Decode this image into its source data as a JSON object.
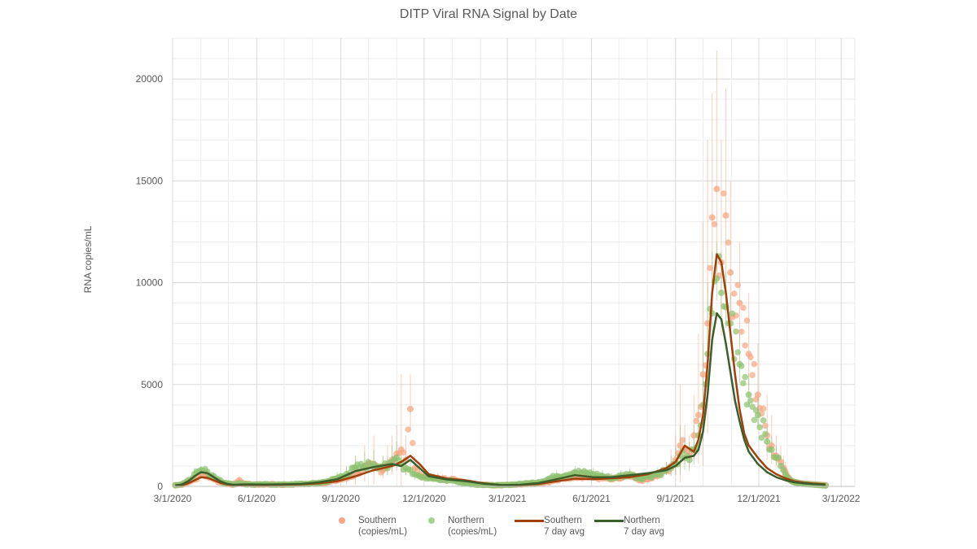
{
  "chart_data": {
    "type": "scatter",
    "title": "DITP Viral RNA Signal by Date",
    "xlabel": "",
    "ylabel": "RNA copies/mL",
    "ylim": [
      0,
      22000
    ],
    "yticks": [
      0,
      5000,
      10000,
      15000,
      20000
    ],
    "xticks": [
      "3/1/2020",
      "6/1/2020",
      "9/1/2020",
      "12/1/2020",
      "3/1/2021",
      "6/1/2021",
      "9/1/2021",
      "12/1/2021",
      "3/1/2022"
    ],
    "xlim": [
      "3/1/2020",
      "3/1/2022"
    ],
    "grid": true,
    "legend_position": "bottom",
    "colors": {
      "southern_points": "#F4A582",
      "northern_points": "#8DC26F",
      "southern_avg": "#A0410D",
      "northern_avg": "#3B5E2B",
      "grid_major": "#D9D9D9",
      "grid_minor": "#EDEDED",
      "text": "#595959"
    },
    "legend": [
      {
        "label_line1": "Southern",
        "label_line2": "(copies/mL)",
        "kind": "dot",
        "color": "#F4A582"
      },
      {
        "label_line1": "Northern",
        "label_line2": "(copies/mL)",
        "kind": "dot",
        "color": "#8DC26F"
      },
      {
        "label_line1": "Southern",
        "label_line2": "7 day avg",
        "kind": "line",
        "color": "#A0410D"
      },
      {
        "label_line1": "Northern",
        "label_line2": "7 day avg",
        "kind": "line",
        "color": "#3B5E2B"
      }
    ],
    "x_unit": "days since 3/1/2020",
    "series": [
      {
        "name": "Southern (copies/mL)",
        "kind": "scatter",
        "x": [
          3,
          10,
          17,
          24,
          31,
          38,
          45,
          52,
          59,
          66,
          73,
          80,
          90,
          100,
          110,
          120,
          130,
          140,
          150,
          160,
          170,
          180,
          190,
          200,
          210,
          220,
          230,
          235,
          240,
          245,
          250,
          255,
          260,
          265,
          270,
          275,
          280,
          285,
          290,
          295,
          300,
          305,
          310,
          315,
          320,
          330,
          340,
          350,
          360,
          370,
          380,
          400,
          420,
          440,
          460,
          470,
          480,
          490,
          500,
          510,
          520,
          530,
          540,
          545,
          550,
          555,
          560,
          565,
          570,
          575,
          580,
          585,
          590,
          595,
          600,
          605,
          610,
          620,
          630,
          640,
          650,
          655,
          660,
          665,
          668,
          670,
          672,
          674,
          676,
          678,
          680,
          682,
          684,
          686,
          688,
          690,
          693,
          696,
          699,
          702,
          705,
          708,
          711,
          714
        ],
        "y": [
          50,
          80,
          200,
          350,
          550,
          500,
          350,
          200,
          120,
          80,
          300,
          120,
          80,
          90,
          100,
          80,
          90,
          110,
          120,
          150,
          200,
          300,
          400,
          600,
          900,
          1000,
          800,
          1100,
          1300,
          1600,
          1800,
          1300,
          3800,
          900,
          600,
          500,
          450,
          400,
          420,
          380,
          300,
          350,
          300,
          250,
          200,
          120,
          80,
          60,
          60,
          80,
          100,
          150,
          300,
          500,
          450,
          400,
          350,
          400,
          500,
          300,
          350,
          500,
          800,
          1000,
          1300,
          2000,
          1800,
          1500,
          2500,
          3500,
          5500,
          8000,
          13200,
          14600,
          11000,
          13300,
          10500,
          9000,
          6500,
          4500,
          2500,
          2000,
          1500,
          1200,
          900,
          700,
          500,
          400,
          300,
          250,
          220,
          200,
          180,
          160,
          150,
          140,
          130,
          120,
          110,
          100,
          90,
          80,
          70,
          60
        ],
        "error_high": [
          80,
          150,
          400,
          700,
          900,
          800,
          500,
          300,
          200,
          150,
          500,
          200,
          120,
          150,
          150,
          120,
          140,
          180,
          200,
          250,
          350,
          600,
          900,
          1500,
          2000,
          2500,
          1500,
          2000,
          2500,
          3000,
          5500,
          2500,
          5500,
          1500,
          1000,
          800,
          700,
          600,
          650,
          600,
          500,
          550,
          450,
          400,
          300,
          200,
          150,
          100,
          100,
          150,
          200,
          300,
          600,
          800,
          700,
          700,
          600,
          700,
          800,
          500,
          600,
          800,
          1200,
          1800,
          2500,
          5000,
          3000,
          2500,
          4500,
          7500,
          13000,
          17000,
          19300,
          21400,
          17000,
          19500,
          15000,
          12000,
          9500,
          7000,
          4500,
          3500,
          2500,
          2000,
          1500,
          1200,
          900,
          700,
          500,
          400,
          350,
          300,
          280,
          250,
          230,
          210,
          200,
          180,
          160,
          150,
          140,
          120,
          110,
          100
        ]
      },
      {
        "name": "Northern (copies/mL)",
        "kind": "scatter",
        "x": [
          3,
          10,
          17,
          24,
          31,
          38,
          45,
          52,
          59,
          66,
          73,
          80,
          90,
          100,
          110,
          120,
          130,
          140,
          150,
          160,
          170,
          180,
          190,
          200,
          210,
          220,
          230,
          235,
          240,
          245,
          250,
          255,
          260,
          265,
          270,
          275,
          280,
          285,
          290,
          295,
          300,
          305,
          310,
          315,
          320,
          330,
          340,
          350,
          360,
          370,
          380,
          400,
          420,
          440,
          460,
          470,
          480,
          490,
          500,
          510,
          520,
          530,
          540,
          545,
          550,
          555,
          560,
          565,
          570,
          575,
          580,
          585,
          590,
          595,
          600,
          605,
          610,
          620,
          630,
          640,
          650,
          655,
          660,
          665,
          668,
          670,
          672,
          674,
          676,
          678,
          680,
          682,
          684,
          686,
          688,
          690,
          693,
          696,
          699,
          702,
          705,
          708,
          711,
          714
        ],
        "y": [
          60,
          100,
          300,
          600,
          800,
          700,
          500,
          300,
          150,
          100,
          150,
          100,
          90,
          100,
          90,
          90,
          100,
          120,
          130,
          180,
          250,
          400,
          600,
          900,
          1000,
          1100,
          1000,
          900,
          1200,
          1400,
          1100,
          900,
          800,
          600,
          500,
          450,
          400,
          380,
          350,
          320,
          280,
          300,
          250,
          200,
          150,
          100,
          70,
          60,
          60,
          80,
          120,
          200,
          500,
          700,
          600,
          500,
          400,
          500,
          600,
          400,
          500,
          600,
          800,
          900,
          1100,
          1500,
          1400,
          1300,
          1800,
          2500,
          4000,
          6500,
          8500,
          10200,
          9500,
          8800,
          8000,
          6000,
          4500,
          3500,
          2200,
          1800,
          1400,
          1000,
          800,
          600,
          450,
          350,
          280,
          230,
          200,
          180,
          160,
          140,
          130,
          120,
          110,
          100,
          90,
          80,
          70,
          60,
          50,
          40
        ],
        "error_high": [
          100,
          150,
          500,
          900,
          1000,
          900,
          700,
          400,
          250,
          150,
          250,
          150,
          130,
          150,
          130,
          130,
          150,
          180,
          200,
          280,
          400,
          700,
          1000,
          1500,
          1700,
          1800,
          1500,
          1500,
          2000,
          2200,
          1800,
          1500,
          1300,
          1000,
          800,
          700,
          650,
          600,
          550,
          500,
          450,
          450,
          400,
          300,
          250,
          150,
          120,
          100,
          100,
          150,
          200,
          350,
          800,
          1000,
          900,
          800,
          650,
          800,
          900,
          600,
          700,
          900,
          1200,
          1500,
          2000,
          3000,
          2400,
          2200,
          3000,
          4000,
          7000,
          10000,
          11500,
          12000,
          11500,
          10500,
          9500,
          7500,
          5500,
          4500,
          3000,
          2500,
          2000,
          1500,
          1200,
          900,
          700,
          550,
          450,
          350,
          300,
          280,
          250,
          220,
          200,
          180,
          160,
          150,
          140,
          120,
          110,
          100,
          80,
          70
        ]
      },
      {
        "name": "Southern 7 day avg",
        "kind": "line",
        "x": [
          3,
          10,
          17,
          24,
          31,
          38,
          45,
          52,
          59,
          66,
          80,
          100,
          120,
          140,
          160,
          180,
          200,
          220,
          240,
          250,
          260,
          270,
          280,
          300,
          320,
          340,
          360,
          380,
          400,
          420,
          440,
          460,
          480,
          500,
          520,
          540,
          550,
          560,
          570,
          575,
          580,
          585,
          590,
          595,
          600,
          605,
          610,
          615,
          620,
          625,
          630,
          640,
          650,
          660,
          670,
          680,
          690,
          700,
          714
        ],
        "y": [
          40,
          60,
          150,
          300,
          450,
          420,
          300,
          180,
          100,
          60,
          80,
          70,
          80,
          100,
          150,
          250,
          500,
          800,
          1000,
          1200,
          1500,
          1100,
          600,
          380,
          300,
          150,
          60,
          70,
          120,
          250,
          380,
          350,
          400,
          450,
          600,
          900,
          1200,
          2000,
          1700,
          2300,
          3500,
          6000,
          9500,
          11400,
          11000,
          9500,
          7500,
          5500,
          3800,
          2600,
          2000,
          1400,
          900,
          600,
          400,
          250,
          180,
          140,
          100
        ]
      },
      {
        "name": "Northern 7 day avg",
        "kind": "line",
        "x": [
          3,
          10,
          17,
          24,
          31,
          38,
          45,
          52,
          59,
          66,
          80,
          100,
          120,
          140,
          160,
          180,
          200,
          220,
          240,
          250,
          260,
          270,
          280,
          300,
          320,
          340,
          360,
          380,
          400,
          420,
          440,
          460,
          480,
          500,
          520,
          540,
          550,
          560,
          570,
          575,
          580,
          585,
          590,
          595,
          600,
          605,
          610,
          615,
          620,
          625,
          630,
          640,
          650,
          660,
          670,
          680,
          690,
          700,
          714
        ],
        "y": [
          50,
          90,
          250,
          500,
          700,
          650,
          450,
          250,
          130,
          80,
          100,
          90,
          100,
          120,
          200,
          350,
          750,
          950,
          1100,
          1000,
          1300,
          900,
          500,
          340,
          260,
          130,
          60,
          80,
          160,
          350,
          550,
          450,
          450,
          550,
          650,
          800,
          1000,
          1400,
          1500,
          1800,
          2700,
          4500,
          7200,
          8500,
          8200,
          7000,
          5600,
          4200,
          3200,
          2300,
          1700,
          1100,
          700,
          450,
          300,
          200,
          150,
          110,
          80
        ]
      }
    ]
  }
}
